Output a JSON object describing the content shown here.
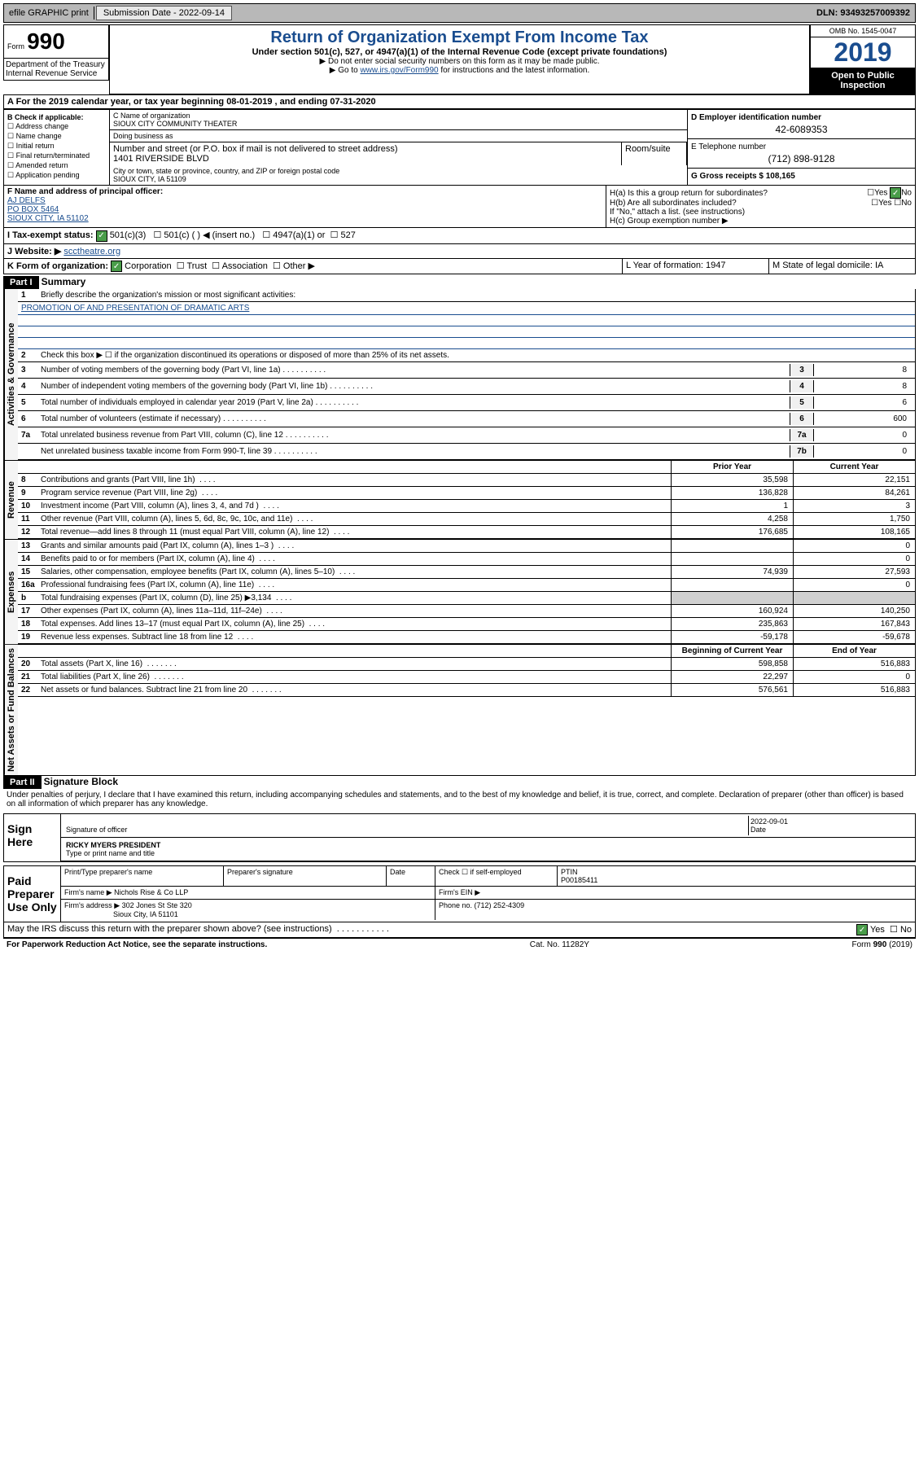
{
  "topbar": {
    "efile": "efile GRAPHIC print",
    "submission": "Submission Date - 2022-09-14",
    "dln": "DLN: 93493257009392"
  },
  "header": {
    "form_label": "Form",
    "form_number": "990",
    "title": "Return of Organization Exempt From Income Tax",
    "subtitle": "Under section 501(c), 527, or 4947(a)(1) of the Internal Revenue Code (except private foundations)",
    "instruction1": "▶ Do not enter social security numbers on this form as it may be made public.",
    "instruction2_prefix": "▶ Go to ",
    "instruction2_link": "www.irs.gov/Form990",
    "instruction2_suffix": " for instructions and the latest information.",
    "omb": "OMB No. 1545-0047",
    "year": "2019",
    "inspection": "Open to Public Inspection",
    "dept": "Department of the Treasury Internal Revenue Service"
  },
  "section_a": "A For the 2019 calendar year, or tax year beginning 08-01-2019   , and ending 07-31-2020",
  "section_b": {
    "title": "B Check if applicable:",
    "opts": [
      "Address change",
      "Name change",
      "Initial return",
      "Final return/terminated",
      "Amended return",
      "Application pending"
    ]
  },
  "section_c": {
    "name_label": "C Name of organization",
    "name": "SIOUX CITY COMMUNITY THEATER",
    "dba_label": "Doing business as",
    "street_label": "Number and street (or P.O. box if mail is not delivered to street address)",
    "room_label": "Room/suite",
    "street": "1401 RIVERSIDE BLVD",
    "city_label": "City or town, state or province, country, and ZIP or foreign postal code",
    "city": "SIOUX CITY, IA  51109"
  },
  "section_d": {
    "ein_label": "D Employer identification number",
    "ein": "42-6089353",
    "phone_label": "E Telephone number",
    "phone": "(712) 898-9128",
    "gross_label": "G Gross receipts $ 108,165"
  },
  "section_f": {
    "label": "F  Name and address of principal officer:",
    "name": "AJ DELFS",
    "addr1": "PO BOX 5464",
    "addr2": "SIOUX CITY, IA  51102"
  },
  "section_h": {
    "ha": "H(a)  Is this a group return for subordinates?",
    "hb": "H(b)  Are all subordinates included?",
    "hb_note": "If \"No,\" attach a list. (see instructions)",
    "hc": "H(c)  Group exemption number ▶",
    "yes": "Yes",
    "no": "No"
  },
  "tax_status": {
    "label": "I   Tax-exempt status:",
    "opt1": "501(c)(3)",
    "opt2": "501(c) (   ) ◀ (insert no.)",
    "opt3": "4947(a)(1) or",
    "opt4": "527"
  },
  "website": {
    "label": "J   Website: ▶",
    "val": "scctheatre.org"
  },
  "section_k": {
    "label": "K Form of organization:",
    "opts": [
      "Corporation",
      "Trust",
      "Association",
      "Other ▶"
    ]
  },
  "section_l": {
    "label": "L Year of formation: 1947"
  },
  "section_m": {
    "label": "M State of legal domicile: IA"
  },
  "part1": {
    "header": "Part I",
    "title": "Summary",
    "vert_gov": "Activities & Governance",
    "vert_rev": "Revenue",
    "vert_exp": "Expenses",
    "vert_net": "Net Assets or Fund Balances",
    "q1": "Briefly describe the organization's mission or most significant activities:",
    "mission": "PROMOTION OF AND PRESENTATION OF DRAMATIC ARTS",
    "q2": "Check this box ▶ ☐  if the organization discontinued its operations or disposed of more than 25% of its net assets.",
    "lines_gov": [
      {
        "n": "3",
        "t": "Number of voting members of the governing body (Part VI, line 1a)",
        "b": "3",
        "v": "8"
      },
      {
        "n": "4",
        "t": "Number of independent voting members of the governing body (Part VI, line 1b)",
        "b": "4",
        "v": "8"
      },
      {
        "n": "5",
        "t": "Total number of individuals employed in calendar year 2019 (Part V, line 2a)",
        "b": "5",
        "v": "6"
      },
      {
        "n": "6",
        "t": "Total number of volunteers (estimate if necessary)",
        "b": "6",
        "v": "600"
      },
      {
        "n": "7a",
        "t": "Total unrelated business revenue from Part VIII, column (C), line 12",
        "b": "7a",
        "v": "0"
      },
      {
        "n": "",
        "t": "Net unrelated business taxable income from Form 990-T, line 39",
        "b": "7b",
        "v": "0"
      }
    ],
    "prior_year": "Prior Year",
    "current_year": "Current Year",
    "lines_rev": [
      {
        "n": "8",
        "t": "Contributions and grants (Part VIII, line 1h)",
        "p": "35,598",
        "c": "22,151"
      },
      {
        "n": "9",
        "t": "Program service revenue (Part VIII, line 2g)",
        "p": "136,828",
        "c": "84,261"
      },
      {
        "n": "10",
        "t": "Investment income (Part VIII, column (A), lines 3, 4, and 7d )",
        "p": "1",
        "c": "3"
      },
      {
        "n": "11",
        "t": "Other revenue (Part VIII, column (A), lines 5, 6d, 8c, 9c, 10c, and 11e)",
        "p": "4,258",
        "c": "1,750"
      },
      {
        "n": "12",
        "t": "Total revenue—add lines 8 through 11 (must equal Part VIII, column (A), line 12)",
        "p": "176,685",
        "c": "108,165"
      }
    ],
    "lines_exp": [
      {
        "n": "13",
        "t": "Grants and similar amounts paid (Part IX, column (A), lines 1–3 )",
        "p": "",
        "c": "0"
      },
      {
        "n": "14",
        "t": "Benefits paid to or for members (Part IX, column (A), line 4)",
        "p": "",
        "c": "0"
      },
      {
        "n": "15",
        "t": "Salaries, other compensation, employee benefits (Part IX, column (A), lines 5–10)",
        "p": "74,939",
        "c": "27,593"
      },
      {
        "n": "16a",
        "t": "Professional fundraising fees (Part IX, column (A), line 11e)",
        "p": "",
        "c": "0"
      },
      {
        "n": "b",
        "t": "Total fundraising expenses (Part IX, column (D), line 25) ▶3,134",
        "p": "",
        "c": ""
      },
      {
        "n": "17",
        "t": "Other expenses (Part IX, column (A), lines 11a–11d, 11f–24e)",
        "p": "160,924",
        "c": "140,250"
      },
      {
        "n": "18",
        "t": "Total expenses. Add lines 13–17 (must equal Part IX, column (A), line 25)",
        "p": "235,863",
        "c": "167,843"
      },
      {
        "n": "19",
        "t": "Revenue less expenses. Subtract line 18 from line 12",
        "p": "-59,178",
        "c": "-59,678"
      }
    ],
    "beg_year": "Beginning of Current Year",
    "end_year": "End of Year",
    "lines_net": [
      {
        "n": "20",
        "t": "Total assets (Part X, line 16)",
        "p": "598,858",
        "c": "516,883"
      },
      {
        "n": "21",
        "t": "Total liabilities (Part X, line 26)",
        "p": "22,297",
        "c": "0"
      },
      {
        "n": "22",
        "t": "Net assets or fund balances. Subtract line 21 from line 20",
        "p": "576,561",
        "c": "516,883"
      }
    ]
  },
  "part2": {
    "header": "Part II",
    "title": "Signature Block",
    "penalty": "Under penalties of perjury, I declare that I have examined this return, including accompanying schedules and statements, and to the best of my knowledge and belief, it is true, correct, and complete. Declaration of preparer (other than officer) is based on all information of which preparer has any knowledge.",
    "sign_here": "Sign Here",
    "sig_officer": "Signature of officer",
    "sig_date": "2022-09-01",
    "date_label": "Date",
    "officer_name": "RICKY MYERS  PRESIDENT",
    "type_label": "Type or print name and title",
    "paid_prep": "Paid Preparer Use Only",
    "prep_name_label": "Print/Type preparer's name",
    "prep_sig_label": "Preparer's signature",
    "check_self": "Check ☐  if self-employed",
    "ptin_label": "PTIN",
    "ptin": "P00185411",
    "firm_name_label": "Firm's name    ▶",
    "firm_name": "Nichols Rise & Co LLP",
    "firm_ein_label": "Firm's EIN ▶",
    "firm_addr_label": "Firm's address ▶",
    "firm_addr1": "302 Jones St Ste 320",
    "firm_addr2": "Sioux City, IA  51101",
    "firm_phone_label": "Phone no. (712) 252-4309",
    "discuss": "May the IRS discuss this return with the preparer shown above? (see instructions)"
  },
  "footer": {
    "paperwork": "For Paperwork Reduction Act Notice, see the separate instructions.",
    "cat": "Cat. No. 11282Y",
    "form": "Form 990 (2019)"
  },
  "colors": {
    "blue": "#1a4d8f",
    "green": "#4a9d4a",
    "grey": "#b8b8b8"
  }
}
